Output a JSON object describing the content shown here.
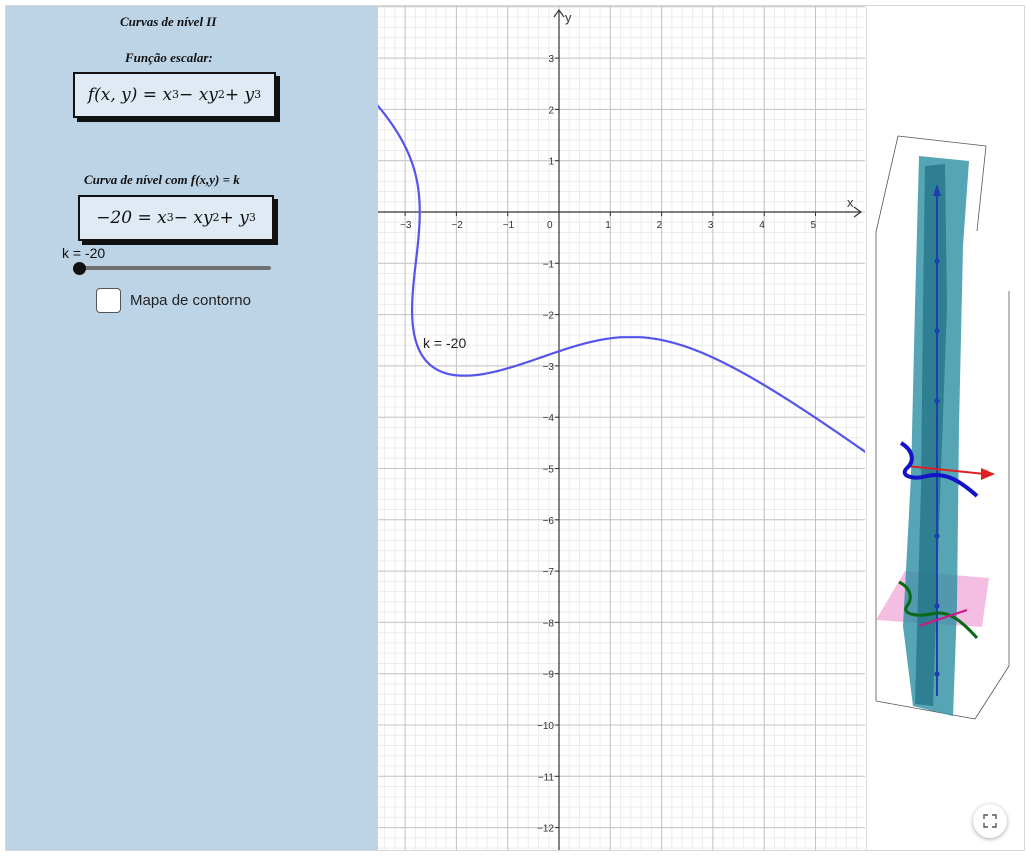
{
  "left_panel": {
    "title": "Curvas de nível II",
    "scalar_heading": "Função escalar:",
    "scalar_formula": {
      "lhs": "f(x, y) = x",
      "exp1": "3",
      "mid": " − xy",
      "exp2": "2",
      "plus": " + y",
      "exp3": "3"
    },
    "level_heading": "Curva de nível com f(x,y) = k",
    "level_formula": {
      "lhs": "−20  = x",
      "exp1": "3",
      "mid": " − xy",
      "exp2": "2",
      "plus": " + y",
      "exp3": "3"
    },
    "slider": {
      "label": "k = -20",
      "value": -20
    },
    "checkbox": {
      "label": "Mapa de contorno",
      "checked": false
    }
  },
  "graph2d": {
    "x_axis_label": "x",
    "y_axis_label": "y",
    "x_ticks": [
      "−3",
      "−2",
      "−1",
      "0",
      "1",
      "2",
      "3",
      "4",
      "5"
    ],
    "y_ticks": [
      "3",
      "2",
      "1",
      "−1",
      "−2",
      "−3",
      "−4",
      "−5",
      "−6",
      "−7",
      "−8",
      "−9",
      "−10",
      "−11",
      "−12"
    ],
    "curve_label": "k = -20",
    "k": -20,
    "curve_color": "#5555ee"
  },
  "graph3d": {
    "surface_color": "#2a8fa3",
    "plane_color": "#f0a8d8",
    "z_axis_color": "#1f3fb0",
    "x_axis_color": "#e02020",
    "curve_blue": "#1313c8",
    "curve_green": "#0a6a14"
  },
  "icons": {
    "fullscreen": "fullscreen-icon"
  }
}
